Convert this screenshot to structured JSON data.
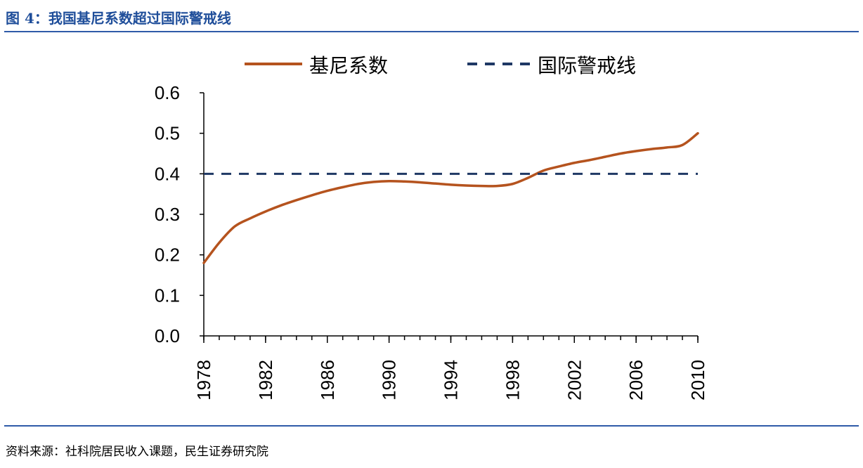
{
  "header": {
    "title": "图 4：我国基尼系数超过国际警戒线"
  },
  "footer": {
    "source": "资料来源：社科院居民收入课题，民生证券研究院"
  },
  "colors": {
    "gini": "#b5531e",
    "warning": "#1f3864",
    "axis": "#000000",
    "title": "#1f4e9a"
  },
  "chart_data": {
    "type": "line",
    "title": "",
    "xlabel": "",
    "ylabel": "",
    "x_ticks": [
      "1978",
      "1982",
      "1986",
      "1990",
      "1994",
      "1998",
      "2002",
      "2006",
      "2010"
    ],
    "y_ticks": [
      "0.0",
      "0.1",
      "0.2",
      "0.3",
      "0.4",
      "0.5",
      "0.6"
    ],
    "xlim": [
      1978,
      2010
    ],
    "ylim": [
      0,
      0.6
    ],
    "legend": [
      "基尼系数",
      "国际警戒线"
    ],
    "series": [
      {
        "name": "基尼系数",
        "style": "solid",
        "x": [
          1978,
          1979,
          1980,
          1981,
          1982,
          1983,
          1984,
          1985,
          1986,
          1987,
          1988,
          1989,
          1990,
          1991,
          1992,
          1993,
          1994,
          1995,
          1996,
          1997,
          1998,
          1999,
          2000,
          2001,
          2002,
          2003,
          2004,
          2005,
          2006,
          2007,
          2008,
          2009,
          2010
        ],
        "y": [
          0.18,
          0.23,
          0.27,
          0.29,
          0.307,
          0.322,
          0.335,
          0.347,
          0.358,
          0.367,
          0.375,
          0.38,
          0.382,
          0.381,
          0.379,
          0.376,
          0.373,
          0.371,
          0.37,
          0.37,
          0.375,
          0.39,
          0.408,
          0.418,
          0.427,
          0.434,
          0.442,
          0.45,
          0.456,
          0.461,
          0.465,
          0.471,
          0.5
        ]
      },
      {
        "name": "国际警戒线",
        "style": "dashed",
        "x": [
          1978,
          2010
        ],
        "y": [
          0.4,
          0.4
        ]
      }
    ]
  }
}
